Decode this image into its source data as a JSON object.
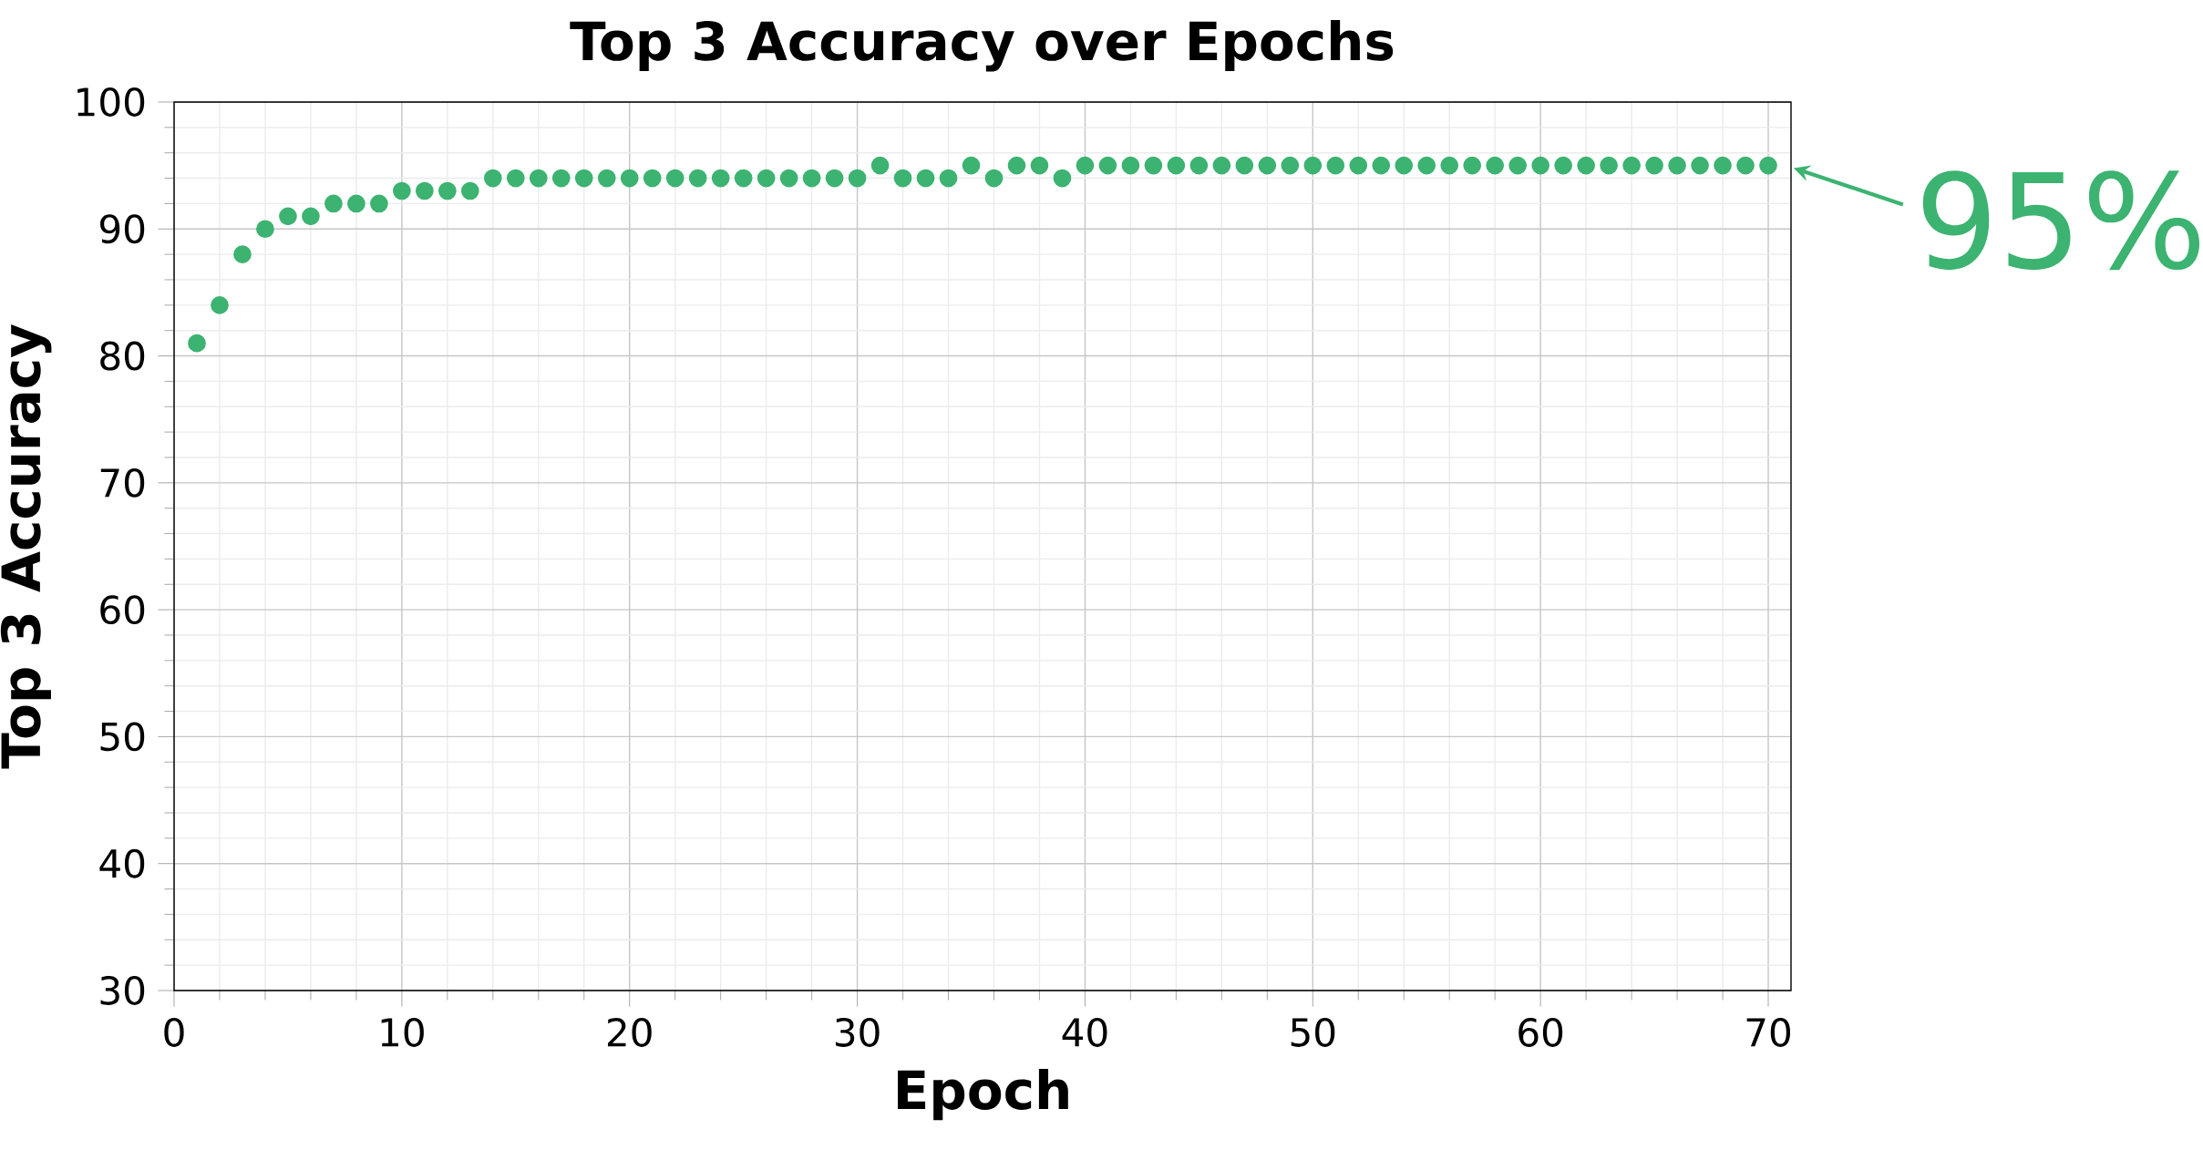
{
  "chart_data": {
    "type": "scatter",
    "title": "Top 3 Accuracy over Epochs",
    "xlabel": "Epoch",
    "ylabel": "Top 3 Accuracy",
    "x": [
      1,
      2,
      3,
      4,
      5,
      6,
      7,
      8,
      9,
      10,
      11,
      12,
      13,
      14,
      15,
      16,
      17,
      18,
      19,
      20,
      21,
      22,
      23,
      24,
      25,
      26,
      27,
      28,
      29,
      30,
      31,
      32,
      33,
      34,
      35,
      36,
      37,
      38,
      39,
      40,
      41,
      42,
      43,
      44,
      45,
      46,
      47,
      48,
      49,
      50,
      51,
      52,
      53,
      54,
      55,
      56,
      57,
      58,
      59,
      60,
      61,
      62,
      63,
      64,
      65,
      66,
      67,
      68,
      69,
      70
    ],
    "series": [
      {
        "color": "#3cb371",
        "values": [
          81,
          84,
          88,
          90,
          91,
          91,
          92,
          92,
          92,
          93,
          93,
          93,
          93,
          94,
          94,
          94,
          94,
          94,
          94,
          94,
          94,
          94,
          94,
          94,
          94,
          94,
          94,
          94,
          94,
          94,
          95,
          94,
          94,
          94,
          95,
          94,
          95,
          95,
          94,
          95,
          95,
          95,
          95,
          95,
          95,
          95,
          95,
          95,
          95,
          95,
          95,
          95,
          95,
          95,
          95,
          95,
          95,
          95,
          95,
          95,
          95,
          95,
          95,
          95,
          95,
          95,
          95,
          95,
          95,
          95
        ]
      }
    ],
    "xlim": [
      0,
      71
    ],
    "ylim": [
      30,
      100
    ],
    "xticks": [
      0,
      10,
      20,
      30,
      40,
      50,
      60,
      70
    ],
    "yticks": [
      30,
      40,
      50,
      60,
      70,
      80,
      90,
      100
    ],
    "grid": true,
    "marker": "circle",
    "annotations": [
      {
        "text": "95%",
        "x": 70,
        "y": 95
      }
    ]
  }
}
